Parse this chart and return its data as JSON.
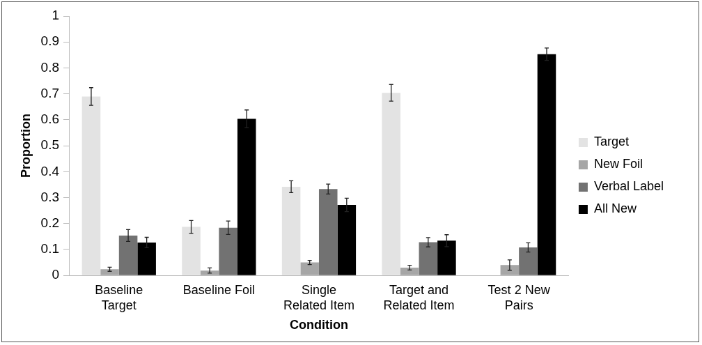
{
  "chart_data": {
    "type": "bar",
    "xlabel": "Condition",
    "ylabel": "Proportion",
    "categories": [
      "Baseline Target",
      "Baseline Foil",
      "Single Related Item",
      "Target and Related Item",
      "Test 2 New Pairs"
    ],
    "series": [
      {
        "name": "Target",
        "color": "#e3e3e3",
        "values": [
          0.69,
          0.187,
          0.342,
          0.704,
          null
        ],
        "errors": [
          0.034,
          0.025,
          0.023,
          0.032,
          null
        ]
      },
      {
        "name": "New Foil",
        "color": "#a6a6a6",
        "values": [
          0.024,
          0.019,
          0.05,
          0.03,
          0.04
        ],
        "errors": [
          0.008,
          0.01,
          0.008,
          0.009,
          0.02
        ]
      },
      {
        "name": "Verbal Label",
        "color": "#727272",
        "values": [
          0.154,
          0.184,
          0.333,
          0.128,
          0.108
        ],
        "errors": [
          0.023,
          0.026,
          0.019,
          0.018,
          0.018
        ]
      },
      {
        "name": "All New",
        "color": "#000000",
        "values": [
          0.127,
          0.604,
          0.272,
          0.134,
          0.853
        ],
        "errors": [
          0.02,
          0.034,
          0.026,
          0.023,
          0.024
        ]
      }
    ],
    "ylim": [
      0,
      1
    ],
    "yticks": [
      0,
      0.1,
      0.2,
      0.3,
      0.4,
      0.5,
      0.6,
      0.7,
      0.8,
      0.9,
      1
    ],
    "grid": false,
    "legend": "right"
  }
}
